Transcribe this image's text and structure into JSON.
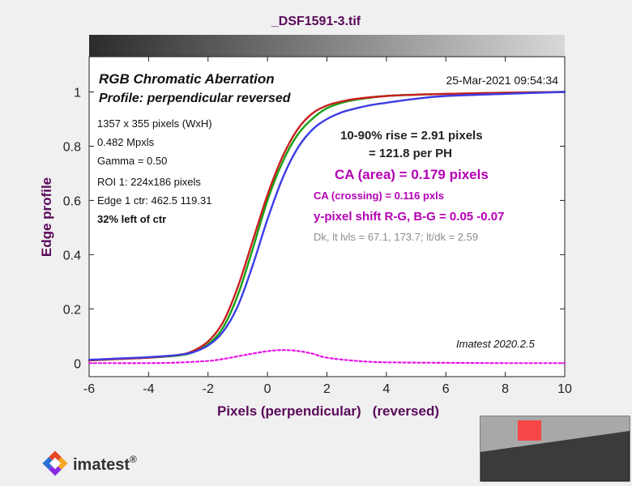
{
  "window_title": "_DSF1591-3.tif",
  "chart_data": {
    "type": "line",
    "title": "RGB Chromatic Aberration",
    "subtitle": "Profile: perpendicular reversed",
    "timestamp": "25-Mar-2021 09:54:34",
    "xlabel": "Pixels (perpendicular)   (reversed)",
    "ylabel": "Edge profile",
    "xlim": [
      -6,
      10
    ],
    "ylim": [
      -0.05,
      1.13
    ],
    "xticks": [
      "-6",
      "-4",
      "-2",
      "0",
      "2",
      "4",
      "6",
      "8",
      "10"
    ],
    "yticks": [
      "0",
      "0.2",
      "0.4",
      "0.6",
      "0.8",
      "1"
    ],
    "xtick_values": [
      -6,
      -4,
      -2,
      0,
      2,
      4,
      6,
      8,
      10
    ],
    "ytick_values": [
      0,
      0.2,
      0.4,
      0.6,
      0.8,
      1
    ],
    "grid": false,
    "left_annotations": [
      "1357 x 355 pixels (WxH)",
      "0.482 Mpxls",
      "Gamma = 0.50",
      "ROI 1: 224x186 pixels",
      "Edge 1 ctr: 462.5  119.31",
      "32% left of ctr"
    ],
    "right_annotations": {
      "rise_line1": "10-90% rise = 2.91 pixels",
      "rise_line2": "= 121.8 per PH",
      "ca_area": "CA (area) = 0.179 pixels",
      "ca_crossing": "CA (crossing) = 0.116 pxls",
      "y_shift": "y-pixel shift R-G, B-G = 0.05  -0.07",
      "levels": "Dk, lt lvls = 67.1, 173.7;  lt/dk = 2.59"
    },
    "version": "Imatest 2020.2.5",
    "colors": {
      "red": "#c81e1e",
      "green": "#14a014",
      "blue": "#3c3ce6",
      "difference": "#e614e6",
      "title_purple": "#5a0a5a",
      "magenta_text": "#b400b4"
    },
    "series": [
      {
        "color": "red",
        "x": [
          -6,
          -5,
          -4,
          -3,
          -2.5,
          -2,
          -1.5,
          -1,
          -0.5,
          0,
          0.5,
          1,
          1.5,
          2,
          2.5,
          3,
          4,
          5,
          6,
          8,
          10
        ],
        "y": [
          0.01,
          0.015,
          0.02,
          0.03,
          0.045,
          0.08,
          0.15,
          0.28,
          0.45,
          0.62,
          0.76,
          0.86,
          0.92,
          0.95,
          0.965,
          0.975,
          0.985,
          0.99,
          0.993,
          0.997,
          1.0
        ]
      },
      {
        "color": "green",
        "x": [
          -6,
          -5,
          -4,
          -3,
          -2.5,
          -2,
          -1.5,
          -1,
          -0.5,
          0,
          0.5,
          1,
          1.5,
          2,
          2.5,
          3,
          4,
          5,
          6,
          8,
          10
        ],
        "y": [
          0.01,
          0.015,
          0.02,
          0.028,
          0.04,
          0.07,
          0.13,
          0.25,
          0.42,
          0.6,
          0.74,
          0.84,
          0.9,
          0.94,
          0.96,
          0.972,
          0.985,
          0.99,
          0.993,
          0.997,
          1.0
        ]
      },
      {
        "color": "blue",
        "x": [
          -6,
          -5,
          -4,
          -3,
          -2.5,
          -2,
          -1.5,
          -1,
          -0.5,
          0,
          0.5,
          1,
          1.5,
          2,
          2.5,
          3,
          3.5,
          4,
          5,
          6,
          8,
          10
        ],
        "y": [
          0.012,
          0.017,
          0.022,
          0.03,
          0.04,
          0.065,
          0.115,
          0.21,
          0.36,
          0.53,
          0.68,
          0.79,
          0.86,
          0.9,
          0.925,
          0.94,
          0.952,
          0.96,
          0.975,
          0.985,
          0.993,
          1.0
        ]
      },
      {
        "color": "difference",
        "x": [
          -6,
          -4,
          -3,
          -2,
          -1.5,
          -1,
          -0.5,
          0,
          0.5,
          1,
          1.5,
          2,
          3,
          4,
          6,
          8,
          10
        ],
        "y": [
          0.0,
          0.0,
          0.002,
          0.008,
          0.015,
          0.025,
          0.035,
          0.044,
          0.048,
          0.045,
          0.035,
          0.02,
          0.008,
          0.003,
          0.001,
          0.0,
          0.0
        ]
      }
    ]
  }
}
